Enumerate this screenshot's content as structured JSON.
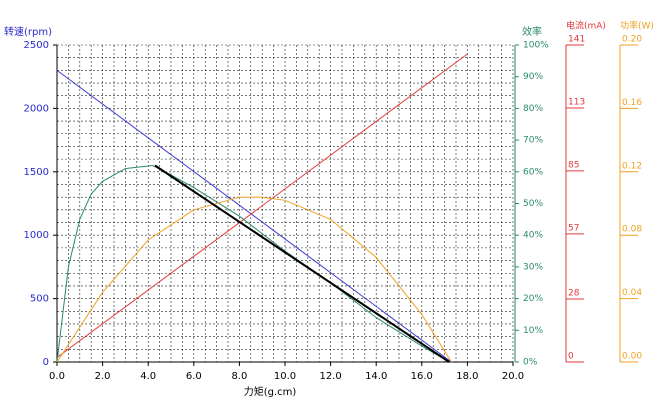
{
  "chart_data": {
    "type": "line",
    "xlabel": "力矩(g.cm)",
    "ylabel": "转速(rpm)",
    "y2label": "效率",
    "y3label": "电流(mA)",
    "y4label": "功率(W)",
    "xlim": [
      0,
      20
    ],
    "xticks": [
      {
        "value": 0,
        "label": "0.0"
      },
      {
        "value": 2,
        "label": "2.0"
      },
      {
        "value": 4,
        "label": "4.0"
      },
      {
        "value": 6,
        "label": "6.0"
      },
      {
        "value": 8,
        "label": "8.0"
      },
      {
        "value": 10,
        "label": "10.0"
      },
      {
        "value": 12,
        "label": "12.0"
      },
      {
        "value": 14,
        "label": "14.0"
      },
      {
        "value": 16,
        "label": "16.0"
      },
      {
        "value": 18,
        "label": "18.0"
      },
      {
        "value": 20,
        "label": "20.0"
      }
    ],
    "ylim": [
      0,
      2500
    ],
    "yticks": [
      0,
      500,
      1000,
      1500,
      2000,
      2500
    ],
    "y2lim": [
      0,
      100
    ],
    "y2ticks": [
      {
        "value": 0,
        "label": "0%"
      },
      {
        "value": 10,
        "label": "10%"
      },
      {
        "value": 20,
        "label": "20%"
      },
      {
        "value": 30,
        "label": "30%"
      },
      {
        "value": 40,
        "label": "40%"
      },
      {
        "value": 50,
        "label": "50%"
      },
      {
        "value": 60,
        "label": "60%"
      },
      {
        "value": 70,
        "label": "70%"
      },
      {
        "value": 80,
        "label": "80%"
      },
      {
        "value": 90,
        "label": "90%"
      },
      {
        "value": 100,
        "label": "100%"
      }
    ],
    "y3lim": [
      0,
      141
    ],
    "y3ticks": [
      0,
      28,
      57,
      85,
      113,
      141
    ],
    "y4lim": [
      0,
      0.2
    ],
    "y4ticks": [
      {
        "value": 0,
        "label": "0.00"
      },
      {
        "value": 0.04,
        "label": "0.04"
      },
      {
        "value": 0.08,
        "label": "0.08"
      },
      {
        "value": 0.12,
        "label": "0.12"
      },
      {
        "value": 0.16,
        "label": "0.16"
      },
      {
        "value": 0.2,
        "label": "0.20"
      }
    ],
    "grid": true,
    "y_color": "#2a2acc",
    "y2_color": "#2a8a6a",
    "y3_color": "#e03a3a",
    "y4_color": "#f0a020",
    "series": [
      {
        "color": "#3a3ad0",
        "axis": "y",
        "x": [
          0,
          17.3
        ],
        "values": [
          2300,
          0
        ]
      },
      {
        "color": "#e03a3a",
        "axis": "y3",
        "x": [
          0,
          18
        ],
        "values": [
          2,
          137
        ]
      },
      {
        "color": "#2a8a6a",
        "axis": "y2",
        "x": [
          0,
          0.5,
          1,
          1.5,
          2,
          3,
          4.2,
          5,
          6,
          8,
          10,
          12,
          14,
          16,
          17.2
        ],
        "values": [
          0,
          30,
          45,
          53,
          57,
          61,
          62,
          59,
          55,
          46,
          35,
          25,
          14,
          5,
          0
        ]
      },
      {
        "color": "#f0a020",
        "axis": "y4",
        "x": [
          0,
          2,
          4,
          6,
          8,
          9,
          10,
          12,
          14,
          16,
          17.3
        ],
        "values": [
          0,
          0.044,
          0.077,
          0.096,
          0.104,
          0.104,
          0.102,
          0.09,
          0.066,
          0.03,
          0
        ]
      },
      {
        "color": "#000000",
        "axis": "y",
        "x": [
          4.3,
          17.2
        ],
        "values": [
          1550,
          0
        ]
      }
    ]
  }
}
